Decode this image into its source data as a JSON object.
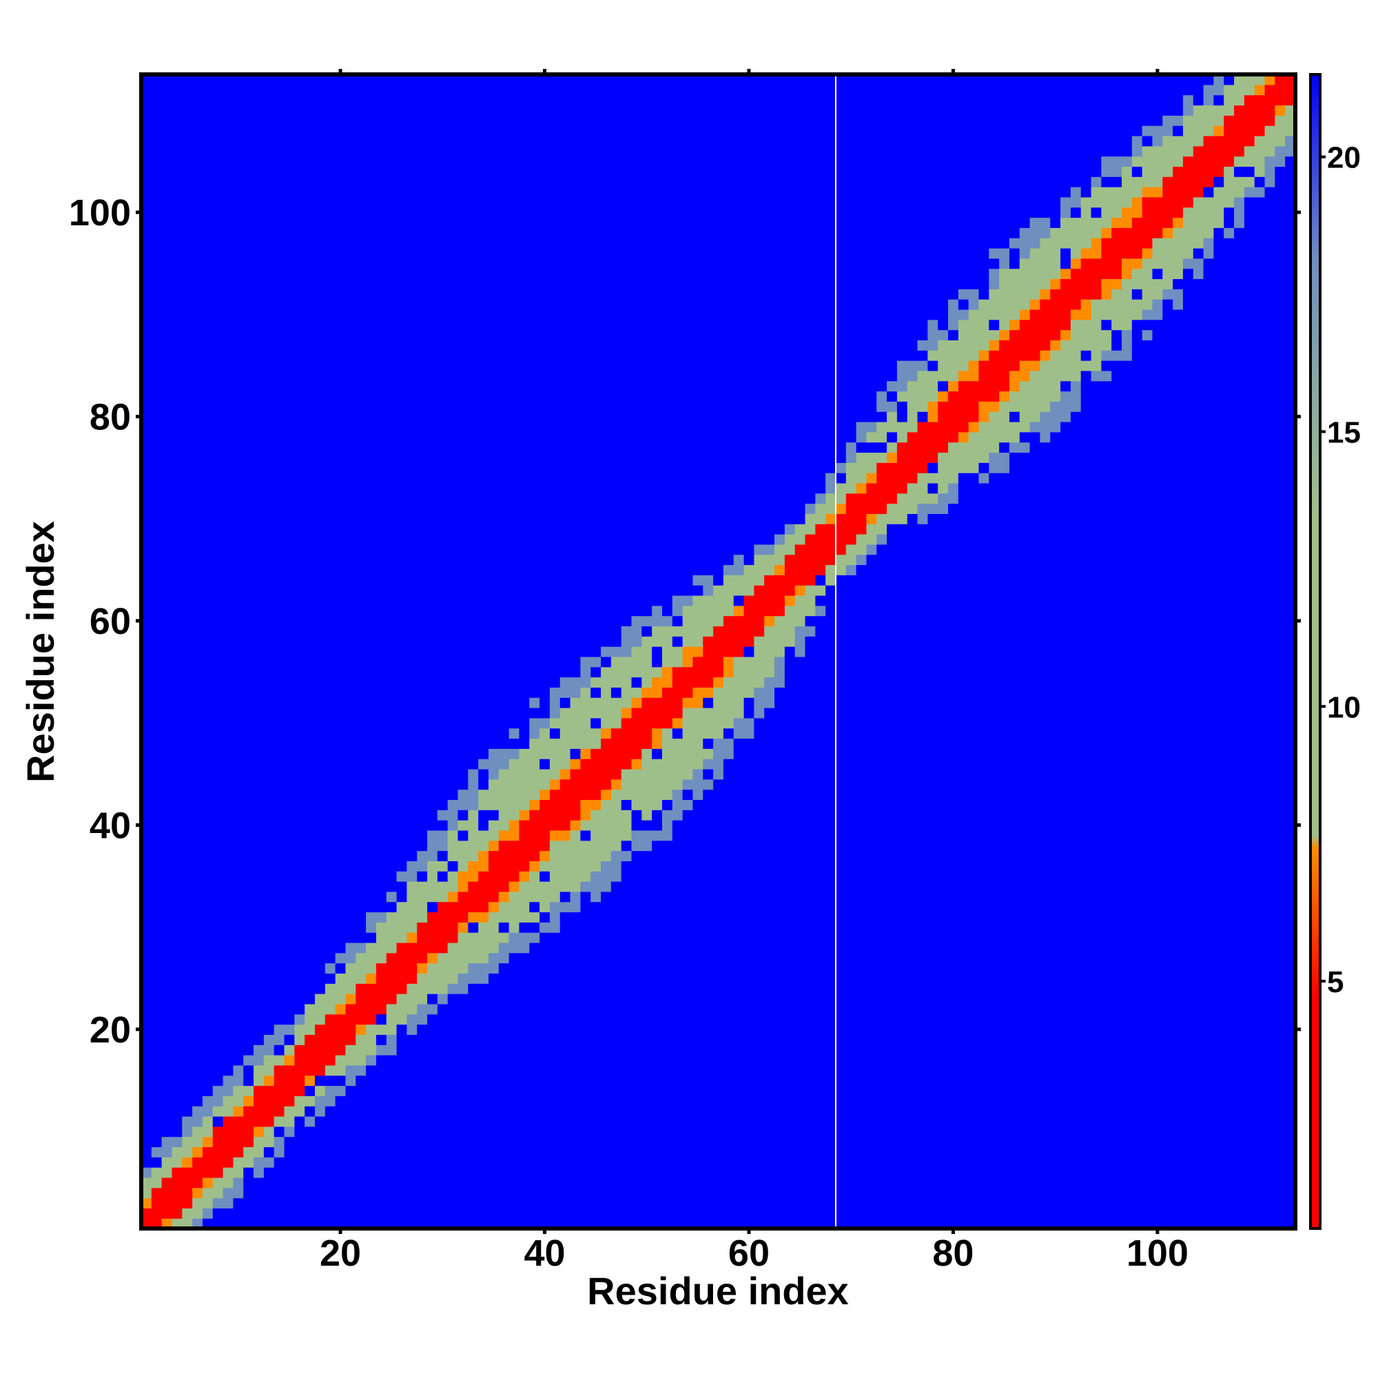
{
  "chart_data": {
    "type": "heatmap",
    "title": "",
    "xlabel": "Residue index",
    "ylabel": "Residue index",
    "x_ticks": [
      20,
      40,
      60,
      80,
      100
    ],
    "y_ticks": [
      20,
      40,
      60,
      80,
      100
    ],
    "xlim": [
      0.5,
      113.5
    ],
    "ylim": [
      0.5,
      113.5
    ],
    "n_residues": 113,
    "colorbar": {
      "ticks": [
        5,
        10,
        15,
        20
      ],
      "range": [
        0.5,
        21.5
      ],
      "colors": {
        "low": "#ff0000",
        "orange": "#ff8c00",
        "green": "#9fbf8a",
        "steel": "#6f8fbf",
        "high": "#0000ff"
      }
    },
    "matrix_description_values": {
      "diagonal_value": 1,
      "near_diagonal_value": 6,
      "mid_band_value": 10,
      "outer_band_value": 15,
      "background_value": 21
    },
    "gap_column": 68.5
  }
}
